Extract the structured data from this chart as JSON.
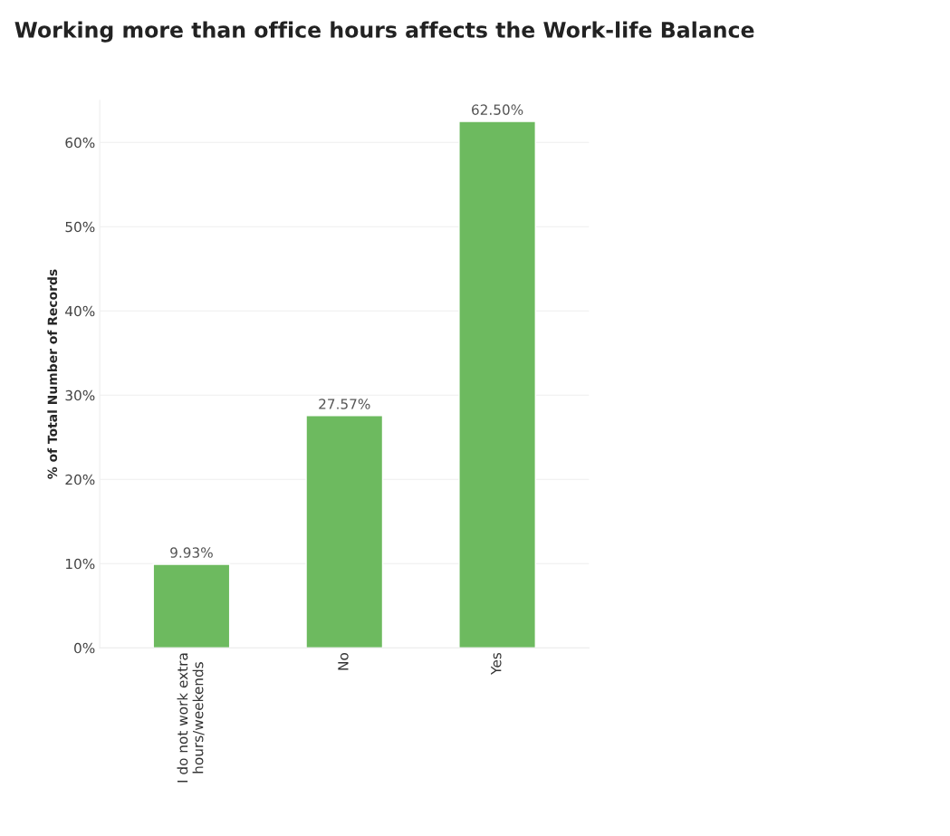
{
  "chart_data": {
    "type": "bar",
    "title": "Working more than office hours affects the Work-life Balance",
    "ylabel": "% of Total Number of Records",
    "categories": [
      "I do not work extra\nhours/weekends",
      "No",
      "Yes"
    ],
    "values": [
      9.93,
      27.57,
      62.5
    ],
    "value_labels": [
      "9.93%",
      "27.57%",
      "62.50%"
    ],
    "color": "#6dba5f",
    "ylim": [
      0,
      65
    ],
    "yticks": [
      {
        "value": 0,
        "label": "0%"
      },
      {
        "value": 10,
        "label": "10%"
      },
      {
        "value": 20,
        "label": "20%"
      },
      {
        "value": 30,
        "label": "30%"
      },
      {
        "value": 40,
        "label": "40%"
      },
      {
        "value": 50,
        "label": "50%"
      },
      {
        "value": 60,
        "label": "60%"
      }
    ],
    "grid": "y"
  }
}
